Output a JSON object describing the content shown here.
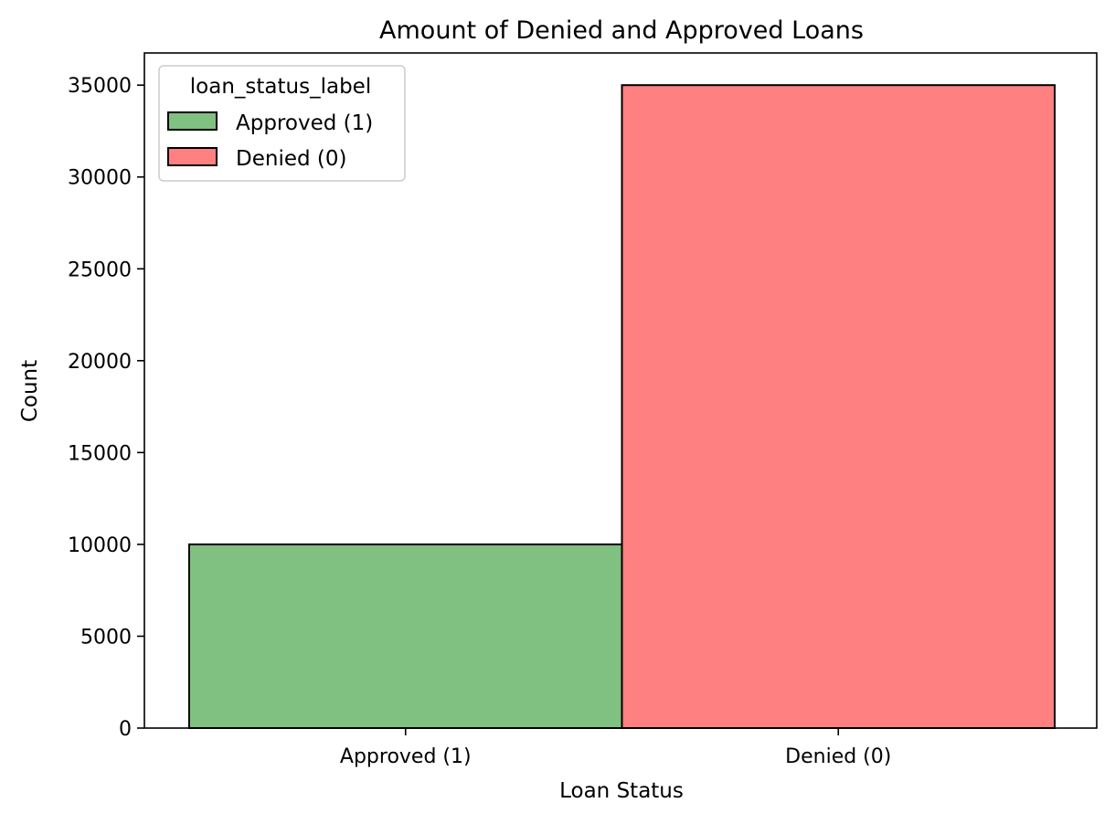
{
  "chart_data": {
    "type": "bar",
    "title": "Amount of Denied and Approved Loans",
    "xlabel": "Loan Status",
    "ylabel": "Count",
    "categories": [
      "Approved (1)",
      "Denied (0)"
    ],
    "values": [
      10000,
      35000
    ],
    "bar_colors": [
      "#80c080",
      "#ff8080"
    ],
    "edge_color": "#000000",
    "ylim": [
      0,
      36750
    ],
    "yticks": [
      0,
      5000,
      10000,
      15000,
      20000,
      25000,
      30000,
      35000
    ],
    "ytick_labels": [
      "0",
      "5000",
      "10000",
      "15000",
      "20000",
      "25000",
      "30000",
      "35000"
    ],
    "grid": false,
    "legend": {
      "title": "loan_status_label",
      "placement": "top-left",
      "entries": [
        {
          "label": "Approved (1)",
          "color": "#80c080"
        },
        {
          "label": "Denied (0)",
          "color": "#ff8080"
        }
      ]
    }
  }
}
